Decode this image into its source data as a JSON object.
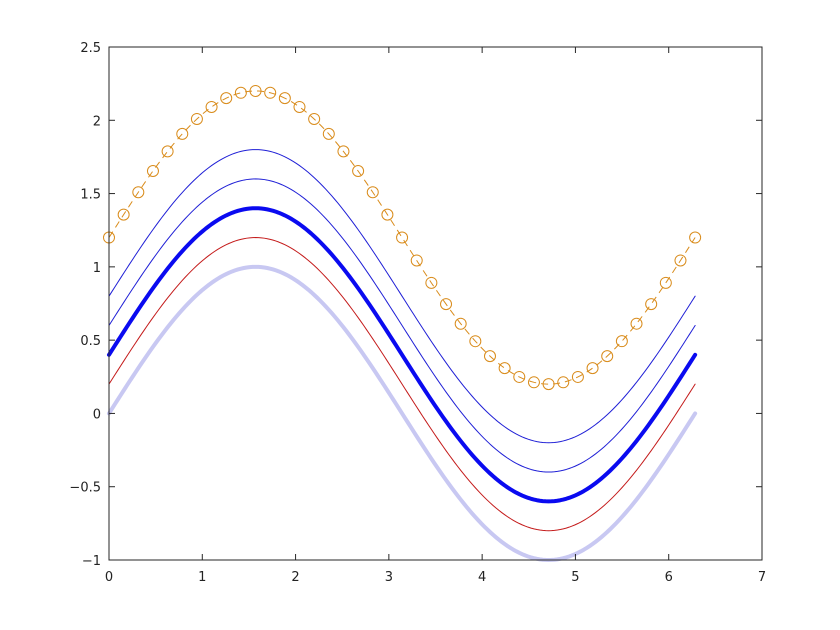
{
  "chart_data": {
    "type": "line",
    "title": "",
    "xlabel": "",
    "ylabel": "",
    "xlim": [
      0,
      7
    ],
    "ylim": [
      -1,
      2.5
    ],
    "xticks": [
      0,
      1,
      2,
      3,
      4,
      5,
      6,
      7
    ],
    "yticks": [
      -1,
      -0.5,
      0,
      0.5,
      1,
      1.5,
      2,
      2.5
    ],
    "xtick_labels": [
      "0",
      "1",
      "2",
      "3",
      "4",
      "5",
      "6",
      "7"
    ],
    "ytick_labels": [
      "−1",
      "−0.5",
      "0",
      "0.5",
      "1",
      "1.5",
      "2",
      "2.5"
    ],
    "grid": false,
    "x_domain": [
      0,
      6.2832
    ],
    "series": [
      {
        "function": "sin(x) + 1.2",
        "offset": 1.2,
        "color": "#d98c1c",
        "style": "dashed",
        "marker": "circle",
        "marker_count": 41
      },
      {
        "function": "sin(x) + 0.8",
        "offset": 0.8,
        "color": "#1f1fd6",
        "style": "solid"
      },
      {
        "function": "sin(x) + 0.6",
        "offset": 0.6,
        "color": "#1f1fd6",
        "style": "solid"
      },
      {
        "function": "sin(x) + 0.4",
        "offset": 0.4,
        "color": "#0a0af0",
        "style": "solid-thick"
      },
      {
        "function": "sin(x) + 0.2",
        "offset": 0.2,
        "color": "#c41a1a",
        "style": "solid"
      },
      {
        "function": "sin(x)",
        "offset": 0.0,
        "color": "#c8c8f2",
        "style": "solid-thick"
      }
    ]
  }
}
